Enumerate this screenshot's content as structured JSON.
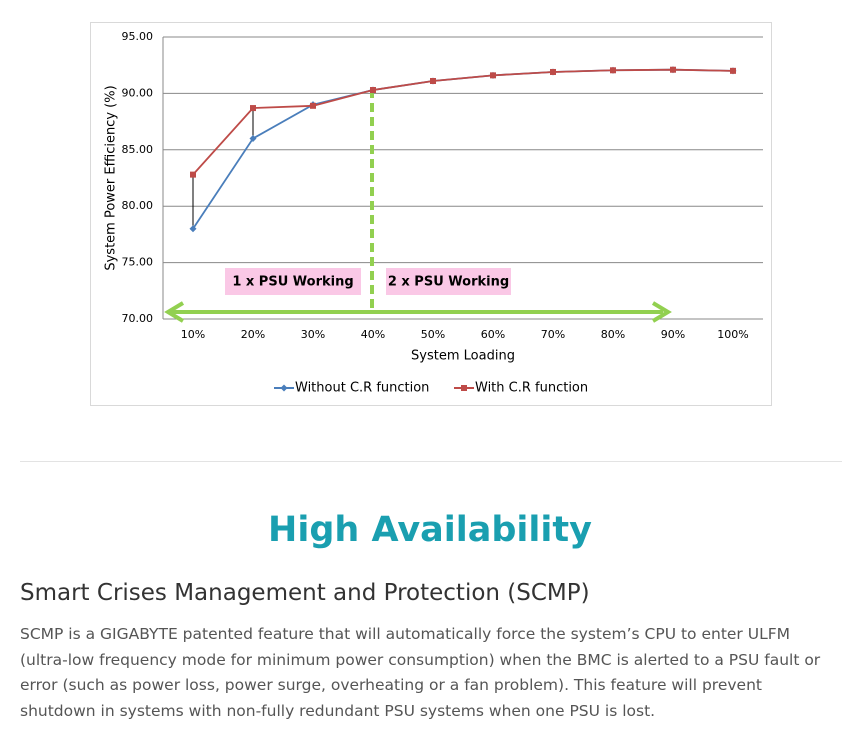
{
  "chart_data": {
    "type": "line",
    "x_label": "System Loading",
    "y_label": "System Power Efficiency (%)",
    "categories": [
      "10%",
      "20%",
      "30%",
      "40%",
      "50%",
      "60%",
      "70%",
      "80%",
      "90%",
      "100%"
    ],
    "series": [
      {
        "name": "Without C.R function",
        "color": "#4a7ebb",
        "marker": "diamond",
        "values": [
          78.0,
          86.0,
          89.0,
          90.3,
          91.1,
          91.6,
          91.9,
          92.05,
          92.1,
          92.0
        ]
      },
      {
        "name": "With C.R function",
        "color": "#be4b48",
        "marker": "square",
        "values": [
          82.8,
          88.7,
          88.9,
          90.3,
          91.1,
          91.6,
          91.9,
          92.05,
          92.1,
          92.0
        ]
      }
    ],
    "ylim": [
      70,
      95
    ],
    "yticks": [
      {
        "value": 70,
        "label": "70.00"
      },
      {
        "value": 75,
        "label": "75.00"
      },
      {
        "value": 80,
        "label": "80.00"
      },
      {
        "value": 85,
        "label": "85.00"
      },
      {
        "value": 90,
        "label": "90.00"
      },
      {
        "value": 95,
        "label": "95.00"
      }
    ],
    "grid": true,
    "legend": "bottom",
    "annotations": [
      "1 x PSU Working",
      "2 x PSU Working"
    ]
  },
  "section": {
    "heading": "High Availability",
    "subheading": "Smart Crises Management and Protection (SCMP)",
    "paragraph": "SCMP is a GIGABYTE patented feature that will automatically force the system’s CPU to enter ULFM (ultra-low frequency mode for minimum power consumption) when the BMC is alerted to a PSU fault or error (such as power loss, power surge, overheating or a fan problem). This feature will prevent shutdown in systems with non-fully redundant PSU systems when one PSU is lost."
  }
}
